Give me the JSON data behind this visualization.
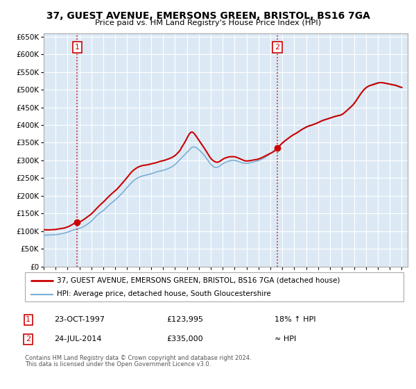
{
  "title": "37, GUEST AVENUE, EMERSONS GREEN, BRISTOL, BS16 7GA",
  "subtitle": "Price paid vs. HM Land Registry's House Price Index (HPI)",
  "ylim": [
    0,
    660000
  ],
  "xlim_start": 1995.0,
  "xlim_end": 2025.5,
  "yticks": [
    0,
    50000,
    100000,
    150000,
    200000,
    250000,
    300000,
    350000,
    400000,
    450000,
    500000,
    550000,
    600000,
    650000
  ],
  "ytick_labels": [
    "£0",
    "£50K",
    "£100K",
    "£150K",
    "£200K",
    "£250K",
    "£300K",
    "£350K",
    "£400K",
    "£450K",
    "£500K",
    "£550K",
    "£600K",
    "£650K"
  ],
  "xticks": [
    1995,
    1996,
    1997,
    1998,
    1999,
    2000,
    2001,
    2002,
    2003,
    2004,
    2005,
    2006,
    2007,
    2008,
    2009,
    2010,
    2011,
    2012,
    2013,
    2014,
    2015,
    2016,
    2017,
    2018,
    2019,
    2020,
    2021,
    2022,
    2023,
    2024,
    2025
  ],
  "sale1_x": 1997.81,
  "sale1_y": 123995,
  "sale2_x": 2014.56,
  "sale2_y": 335000,
  "sale1_label": "1",
  "sale2_label": "2",
  "sale1_date": "23-OCT-1997",
  "sale1_price": "£123,995",
  "sale1_hpi": "18% ↑ HPI",
  "sale2_date": "24-JUL-2014",
  "sale2_price": "£335,000",
  "sale2_hpi": "≈ HPI",
  "legend_line1": "37, GUEST AVENUE, EMERSONS GREEN, BRISTOL, BS16 7GA (detached house)",
  "legend_line2": "HPI: Average price, detached house, South Gloucestershire",
  "red_color": "#cc0000",
  "blue_color": "#7bafd4",
  "bg_color": "#dce9f5",
  "grid_color": "#ffffff",
  "footnote1": "Contains HM Land Registry data © Crown copyright and database right 2024.",
  "footnote2": "This data is licensed under the Open Government Licence v3.0."
}
